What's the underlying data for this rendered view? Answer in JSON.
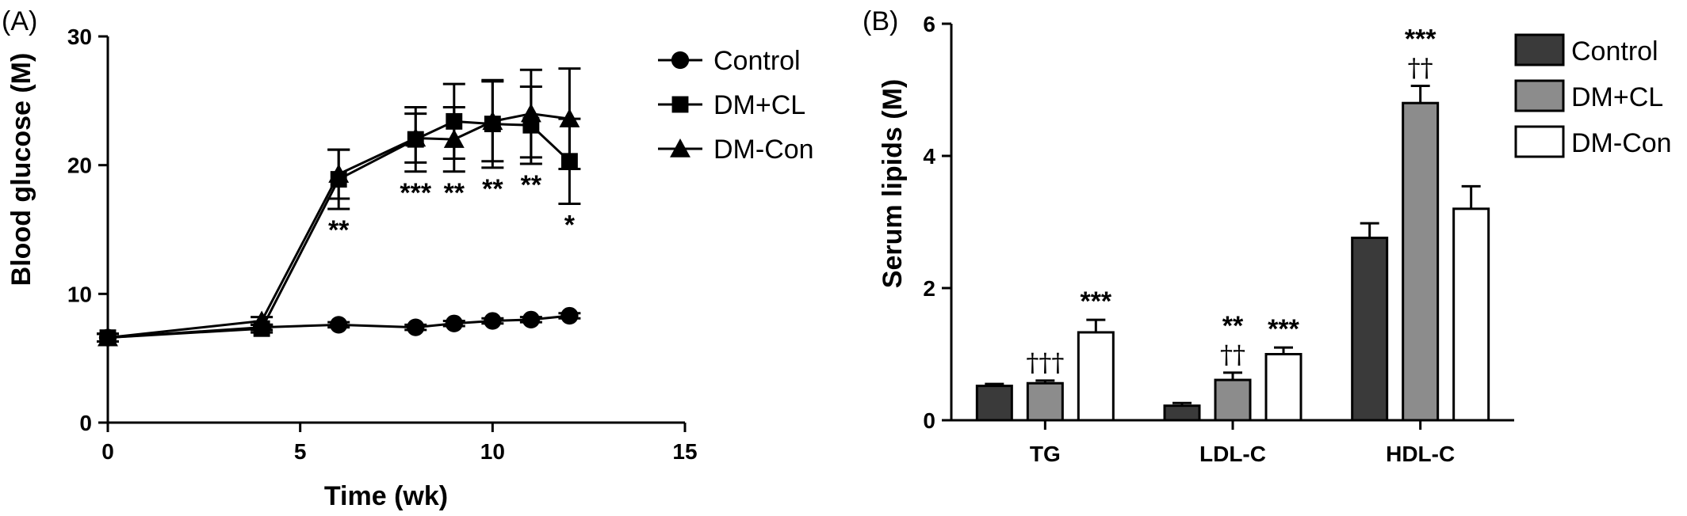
{
  "chart_data": [
    {
      "panel_label": "(A)",
      "type": "line",
      "xlabel": "Time (wk)",
      "ylabel": "Blood glucose (M)",
      "xlim": [
        0,
        15
      ],
      "ylim": [
        0,
        30
      ],
      "xticks": [
        "0",
        "5",
        "10",
        "15"
      ],
      "yticks": [
        "0",
        "10",
        "20",
        "30"
      ],
      "legend_position": "right",
      "series": [
        {
          "name": "Control",
          "marker": "circle",
          "x": [
            0,
            4,
            6,
            8,
            9,
            10,
            11,
            12
          ],
          "y": [
            6.6,
            7.4,
            7.6,
            7.4,
            7.7,
            7.9,
            8.0,
            8.3
          ],
          "err": [
            0.3,
            0.2,
            0.2,
            0.2,
            0.2,
            0.2,
            0.2,
            0.2
          ]
        },
        {
          "name": "DM+CL",
          "marker": "square",
          "x": [
            0,
            4,
            6,
            8,
            9,
            10,
            11,
            12
          ],
          "y": [
            6.6,
            7.3,
            18.9,
            22.0,
            23.4,
            23.2,
            23.1,
            20.3
          ],
          "err": [
            0.3,
            0.3,
            2.3,
            2.5,
            2.9,
            3.4,
            3.0,
            3.3
          ]
        },
        {
          "name": "DM-Con",
          "marker": "triangle",
          "x": [
            0,
            4,
            6,
            8,
            9,
            10,
            11,
            12
          ],
          "y": [
            6.6,
            7.9,
            19.3,
            22.1,
            22.0,
            23.4,
            24.0,
            23.6
          ],
          "err": [
            0.3,
            0.3,
            1.9,
            1.9,
            2.5,
            3.1,
            3.4,
            3.9
          ]
        }
      ],
      "annotations": [
        {
          "x": 6,
          "text": "**"
        },
        {
          "x": 8,
          "text": "***"
        },
        {
          "x": 9,
          "text": "**"
        },
        {
          "x": 10,
          "text": "**"
        },
        {
          "x": 11,
          "text": "**"
        },
        {
          "x": 12,
          "text": "*"
        }
      ]
    },
    {
      "panel_label": "(B)",
      "type": "bar",
      "ylabel": "Serum lipids (M)",
      "ylim": [
        0,
        6
      ],
      "yticks": [
        "0",
        "2",
        "4",
        "6"
      ],
      "categories": [
        "TG",
        "LDL-C",
        "HDL-C"
      ],
      "legend_position": "top-right",
      "series": [
        {
          "name": "Control",
          "color": "#3a3a3a",
          "values": [
            0.52,
            0.22,
            2.76
          ],
          "err": [
            0.03,
            0.04,
            0.22
          ]
        },
        {
          "name": "DM+CL",
          "color": "#8c8c8c",
          "values": [
            0.56,
            0.61,
            4.8
          ],
          "err": [
            0.04,
            0.11,
            0.26
          ]
        },
        {
          "name": "DM-Con",
          "color": "#ffffff",
          "values": [
            1.33,
            1.0,
            3.2
          ],
          "err": [
            0.19,
            0.1,
            0.34
          ]
        }
      ],
      "annotations": [
        {
          "category": "TG",
          "series": "DM+CL",
          "lines": [
            "†††"
          ]
        },
        {
          "category": "TG",
          "series": "DM-Con",
          "lines": [
            "***"
          ]
        },
        {
          "category": "LDL-C",
          "series": "DM+CL",
          "lines": [
            "**",
            "††"
          ]
        },
        {
          "category": "LDL-C",
          "series": "DM-Con",
          "lines": [
            "***"
          ]
        },
        {
          "category": "HDL-C",
          "series": "DM+CL",
          "lines": [
            "***",
            "††"
          ]
        }
      ]
    }
  ]
}
